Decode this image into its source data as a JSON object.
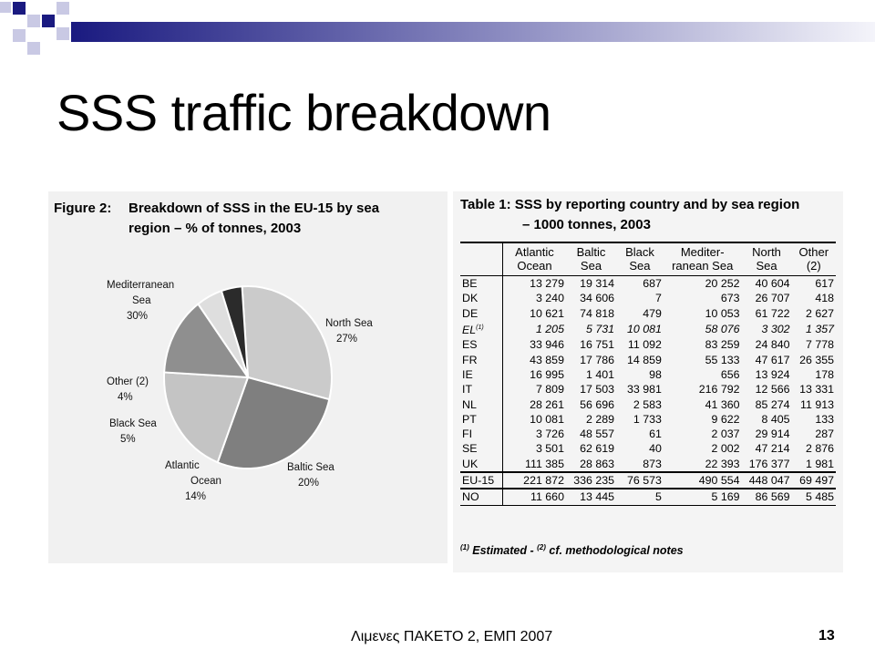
{
  "slide": {
    "title": "SSS traffic breakdown",
    "footer": "Λιμενες ΠΑΚΕΤΟ 2, ΕΜΠ 2007",
    "page_number": "13"
  },
  "figure": {
    "label": "Figure 2:",
    "title_line1": "Breakdown of SSS in the EU-15 by sea",
    "title_line2": "region – % of tonnes, 2003"
  },
  "chart_data": {
    "type": "pie",
    "title": "Breakdown of SSS in the EU-15 by sea region – % of tonnes, 2003",
    "slices": [
      {
        "name": "Mediterranean Sea",
        "value": 30,
        "label": "30%",
        "color": "#cbcbcb"
      },
      {
        "name": "North Sea",
        "value": 27,
        "label": "27%",
        "color": "#7f7f7f"
      },
      {
        "name": "Baltic Sea",
        "value": 20,
        "label": "20%",
        "color": "#c4c4c4"
      },
      {
        "name": "Atlantic Ocean",
        "value": 14,
        "label": "14%",
        "color": "#8f8f8f"
      },
      {
        "name": "Black Sea",
        "value": 5,
        "label": "5%",
        "color": "#dedede"
      },
      {
        "name": "Other (2)",
        "value": 4,
        "label": "4%",
        "color": "#2b2b2b"
      }
    ]
  },
  "table": {
    "title_line1": "Table 1: SSS by reporting country and by sea region",
    "title_line2": "– 1000 tonnes, 2003",
    "columns": [
      "Atlantic Ocean",
      "Baltic Sea",
      "Black Sea",
      "Mediter-ranean Sea",
      "North Sea",
      "Other (2)"
    ],
    "rows": [
      {
        "country": "BE",
        "values": [
          "13 279",
          "19 314",
          "687",
          "20 252",
          "40 604",
          "617"
        ]
      },
      {
        "country": "DK",
        "values": [
          "3 240",
          "34 606",
          "7",
          "673",
          "26 707",
          "418"
        ]
      },
      {
        "country": "DE",
        "values": [
          "10 621",
          "74 818",
          "479",
          "10 053",
          "61 722",
          "2 627"
        ]
      },
      {
        "country": "EL",
        "sup": "(1)",
        "values": [
          "1 205",
          "5 731",
          "10 081",
          "58 076",
          "3 302",
          "1 357"
        ]
      },
      {
        "country": "ES",
        "values": [
          "33 946",
          "16 751",
          "11 092",
          "83 259",
          "24 840",
          "7 778"
        ]
      },
      {
        "country": "FR",
        "values": [
          "43 859",
          "17 786",
          "14 859",
          "55 133",
          "47 617",
          "26 355"
        ]
      },
      {
        "country": "IE",
        "values": [
          "16 995",
          "1 401",
          "98",
          "656",
          "13 924",
          "178"
        ]
      },
      {
        "country": "IT",
        "values": [
          "7 809",
          "17 503",
          "33 981",
          "216 792",
          "12 566",
          "13 331"
        ]
      },
      {
        "country": "NL",
        "values": [
          "28 261",
          "56 696",
          "2 583",
          "41 360",
          "85 274",
          "11 913"
        ]
      },
      {
        "country": "PT",
        "values": [
          "10 081",
          "2 289",
          "1 733",
          "9 622",
          "8 405",
          "133"
        ]
      },
      {
        "country": "FI",
        "values": [
          "3 726",
          "48 557",
          "61",
          "2 037",
          "29 914",
          "287"
        ]
      },
      {
        "country": "SE",
        "values": [
          "3 501",
          "62 619",
          "40",
          "2 002",
          "47 214",
          "2 876"
        ]
      },
      {
        "country": "UK",
        "values": [
          "111 385",
          "28 863",
          "873",
          "22 393",
          "176 377",
          "1 981"
        ]
      }
    ],
    "total": {
      "country": "EU-15",
      "values": [
        "221 872",
        "336 235",
        "76 573",
        "490 554",
        "448 047",
        "69 497"
      ]
    },
    "norway": {
      "country": "NO",
      "values": [
        "11 660",
        "13 445",
        "5",
        "5 169",
        "86 569",
        "5 485"
      ]
    },
    "note_sup1": "(1)",
    "note_text1": " Estimated - ",
    "note_sup2": "(2)",
    "note_text2": " cf. methodological notes"
  }
}
